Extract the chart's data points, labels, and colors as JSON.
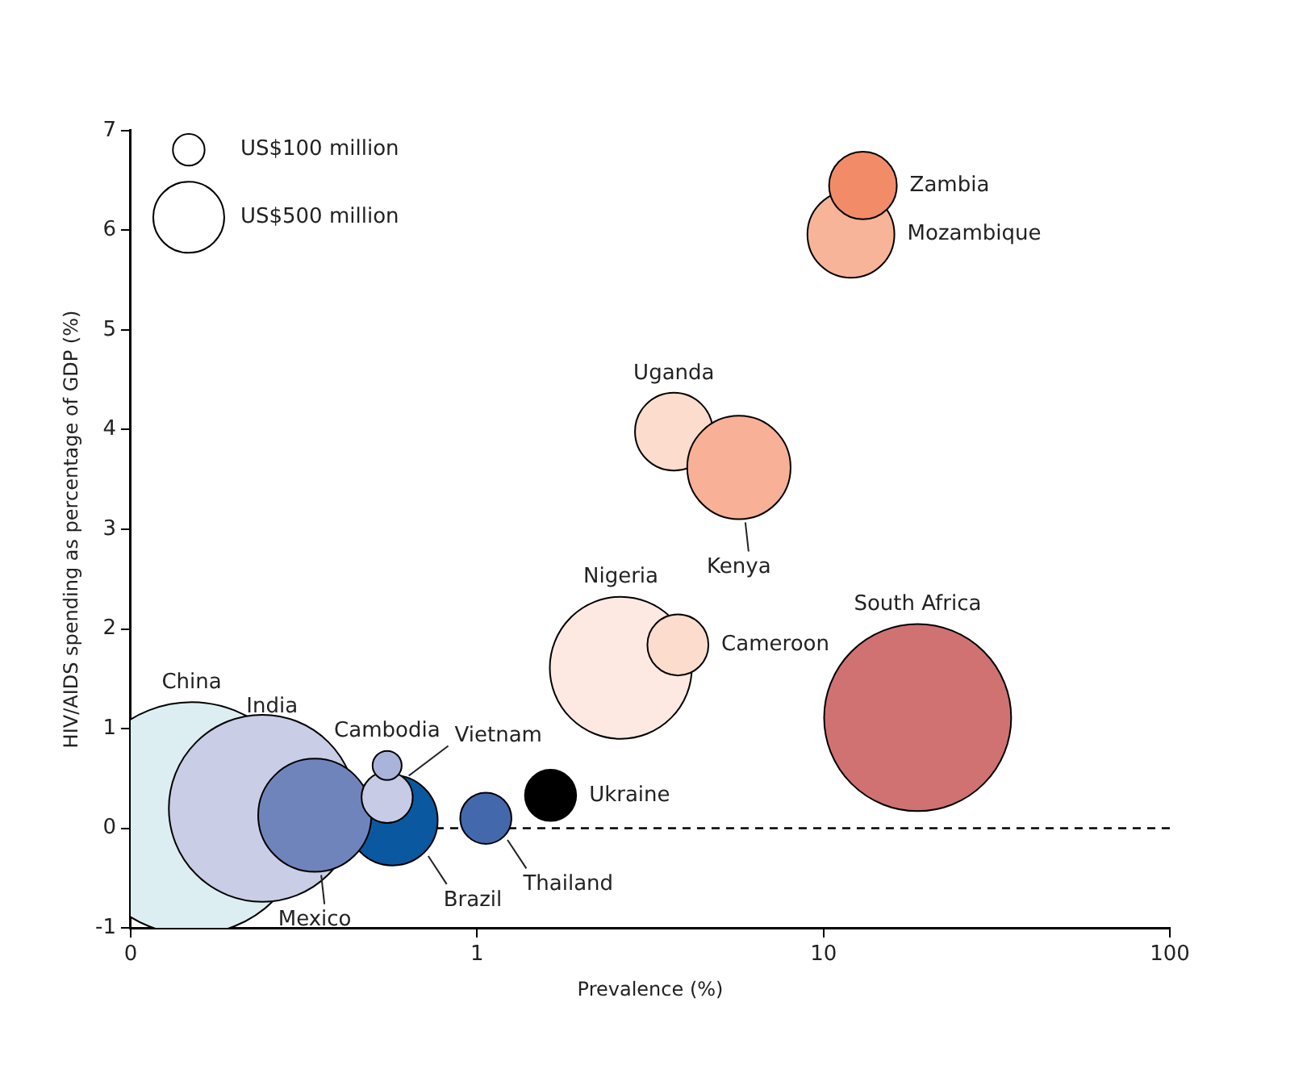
{
  "chart_data": {
    "type": "bubble",
    "xlabel": "Prevalence (%)",
    "ylabel": "HIV/AIDS spending as percentage of GDP (%)",
    "log": "x",
    "xlim": [
      0.1,
      100
    ],
    "xticks": [
      {
        "value": 0.1,
        "label": "0"
      },
      1,
      10,
      100
    ],
    "ylim": [
      -1,
      7
    ],
    "yticks": [
      -1,
      0,
      1,
      2,
      3,
      4,
      5,
      6,
      7
    ],
    "grid": false,
    "legend": false,
    "size_legend": [
      {
        "value": 100,
        "label": "US$100 million"
      },
      {
        "value": 500,
        "label": "US$500 million"
      }
    ],
    "ref_lines": [
      {
        "axis": "y",
        "value": 0,
        "line_style": "dashed",
        "color": "#000000"
      }
    ],
    "series": [
      {
        "name": "China",
        "color": "#dceef2",
        "x": [
          0.15
        ],
        "values": [
          0.1
        ],
        "sizes": [
          5350
        ]
      },
      {
        "name": "India",
        "color": "#c9cde6",
        "x": [
          0.24
        ],
        "values": [
          0.2
        ],
        "sizes": [
          3470
        ]
      },
      {
        "name": "Brazil",
        "color": "#0a58a0",
        "x": [
          0.57
        ],
        "values": [
          0.08
        ],
        "sizes": [
          810
        ]
      },
      {
        "name": "Mexico",
        "color": "#7084bc",
        "x": [
          0.34
        ],
        "values": [
          0.13
        ],
        "sizes": [
          1270
        ]
      },
      {
        "name": "Vietnam",
        "color": "#c7cbe5",
        "x": [
          0.55
        ],
        "values": [
          0.31
        ],
        "sizes": [
          260
        ]
      },
      {
        "name": "Cambodia",
        "color": "#aab4da",
        "x": [
          0.55
        ],
        "values": [
          0.63
        ],
        "sizes": [
          84
        ]
      },
      {
        "name": "Thailand",
        "color": "#4468ac",
        "x": [
          1.06
        ],
        "values": [
          0.1
        ],
        "sizes": [
          260
        ]
      },
      {
        "name": "Ukraine",
        "color": "#000000",
        "x": [
          1.63
        ],
        "values": [
          0.33
        ],
        "sizes": [
          260
        ]
      },
      {
        "name": "Nigeria",
        "color": "#fde9e2",
        "x": [
          2.6
        ],
        "values": [
          1.61
        ],
        "sizes": [
          2000
        ]
      },
      {
        "name": "Cameroon",
        "color": "#fcdccc",
        "x": [
          3.8
        ],
        "values": [
          1.84
        ],
        "sizes": [
          370
        ]
      },
      {
        "name": "Uganda",
        "color": "#fcdccc",
        "x": [
          3.7
        ],
        "values": [
          3.98
        ],
        "sizes": [
          600
        ]
      },
      {
        "name": "Kenya",
        "color": "#f8b096",
        "x": [
          5.7
        ],
        "values": [
          3.62
        ],
        "sizes": [
          1060
        ]
      },
      {
        "name": "South Africa",
        "color": "#d07272",
        "x": [
          18.7
        ],
        "values": [
          1.11
        ],
        "sizes": [
          3470
        ]
      },
      {
        "name": "Mozambique",
        "color": "#f8b498",
        "x": [
          12
        ],
        "values": [
          5.96
        ],
        "sizes": [
          750
        ]
      },
      {
        "name": "Zambia",
        "color": "#f28c68",
        "x": [
          13
        ],
        "values": [
          6.45
        ],
        "sizes": [
          455
        ]
      }
    ]
  }
}
